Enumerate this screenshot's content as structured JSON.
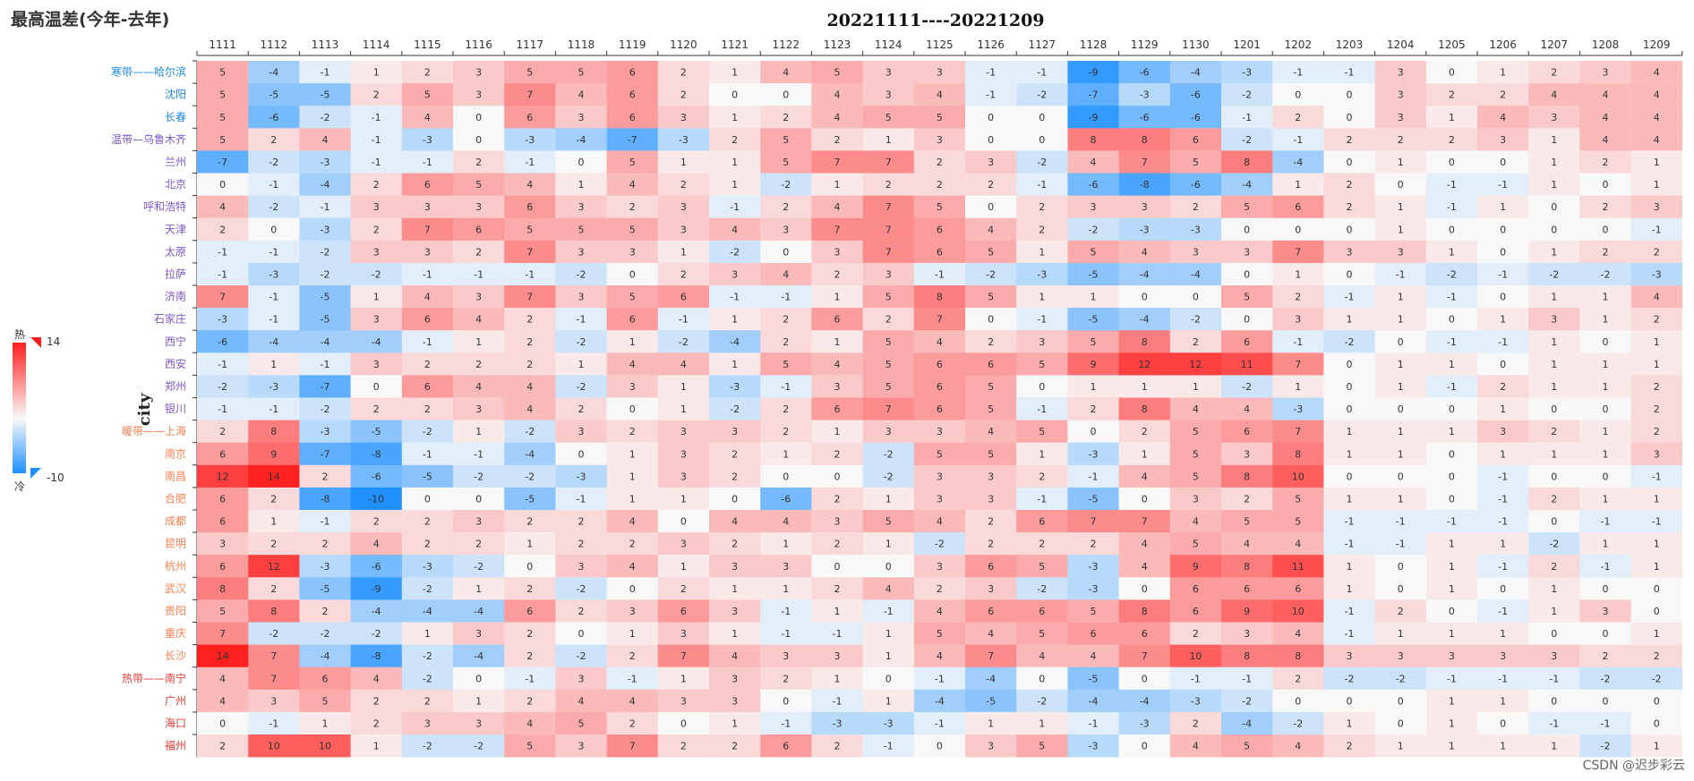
{
  "chart_data": {
    "type": "heatmap",
    "title": "最高温差(今年-去年)",
    "subtitle": "20221111----20221209",
    "ylabel": "city",
    "x": [
      "1111",
      "1112",
      "1113",
      "1114",
      "1115",
      "1116",
      "1117",
      "1118",
      "1119",
      "1120",
      "1121",
      "1122",
      "1123",
      "1124",
      "1125",
      "1126",
      "1127",
      "1128",
      "1129",
      "1130",
      "1201",
      "1202",
      "1203",
      "1204",
      "1205",
      "1206",
      "1207",
      "1208",
      "1209"
    ],
    "y": [
      "寒带——哈尔滨",
      "沈阳",
      "长春",
      "温带—乌鲁木齐",
      "兰州",
      "北京",
      "呼和浩特",
      "天津",
      "太原",
      "拉萨",
      "济南",
      "石家庄",
      "西宁",
      "西安",
      "郑州",
      "银川",
      "暖带——上海",
      "南京",
      "南昌",
      "合肥",
      "成都",
      "昆明",
      "杭州",
      "武汉",
      "贵阳",
      "重庆",
      "长沙",
      "热带——南宁",
      "广州",
      "海口",
      "福州"
    ],
    "y_zone": [
      "cold",
      "cold",
      "cold",
      "temperate",
      "temperate",
      "temperate",
      "temperate",
      "temperate",
      "temperate",
      "temperate",
      "temperate",
      "temperate",
      "temperate",
      "temperate",
      "temperate",
      "temperate",
      "warm",
      "warm",
      "warm",
      "warm",
      "warm",
      "warm",
      "warm",
      "warm",
      "warm",
      "warm",
      "warm",
      "hot",
      "hot",
      "hot",
      "hot"
    ],
    "zone_colors": {
      "cold": "#1e88e5",
      "temperate": "#7e57c2",
      "warm": "#ff7f50",
      "hot": "#e53935"
    },
    "values": [
      [
        5,
        -4,
        -1,
        1,
        2,
        3,
        5,
        5,
        6,
        2,
        1,
        4,
        5,
        3,
        3,
        -1,
        -1,
        -9,
        -6,
        -4,
        -3,
        -1,
        -1,
        3,
        0,
        1,
        2,
        3,
        4
      ],
      [
        5,
        -5,
        -5,
        2,
        5,
        3,
        7,
        4,
        6,
        2,
        0,
        0,
        4,
        3,
        4,
        -1,
        -2,
        -7,
        -3,
        -6,
        -2,
        0,
        0,
        3,
        2,
        2,
        4,
        4,
        4
      ],
      [
        5,
        -6,
        -2,
        -1,
        4,
        0,
        6,
        3,
        6,
        3,
        1,
        2,
        4,
        5,
        5,
        0,
        0,
        -9,
        -6,
        -6,
        -1,
        2,
        0,
        3,
        1,
        4,
        3,
        4,
        4
      ],
      [
        5,
        2,
        4,
        -1,
        -3,
        0,
        -3,
        -4,
        -7,
        -3,
        2,
        5,
        2,
        1,
        3,
        0,
        0,
        8,
        8,
        6,
        -2,
        -1,
        2,
        2,
        2,
        3,
        1,
        4,
        4
      ],
      [
        -7,
        -2,
        -3,
        -1,
        -1,
        2,
        -1,
        0,
        5,
        1,
        1,
        5,
        7,
        7,
        2,
        3,
        -2,
        4,
        7,
        5,
        8,
        -4,
        0,
        1,
        0,
        0,
        1,
        2,
        1
      ],
      [
        0,
        -1,
        -4,
        2,
        6,
        5,
        4,
        1,
        4,
        2,
        1,
        -2,
        1,
        2,
        2,
        2,
        -1,
        -6,
        -8,
        -6,
        -4,
        1,
        2,
        0,
        -1,
        -1,
        1,
        0,
        1
      ],
      [
        4,
        -2,
        -1,
        3,
        3,
        3,
        6,
        3,
        2,
        3,
        -1,
        2,
        4,
        7,
        5,
        0,
        2,
        3,
        3,
        2,
        5,
        6,
        2,
        1,
        -1,
        1,
        0,
        2,
        3
      ],
      [
        2,
        0,
        -3,
        2,
        7,
        6,
        5,
        5,
        5,
        3,
        4,
        3,
        7,
        7,
        6,
        4,
        2,
        -2,
        -3,
        -3,
        0,
        0,
        0,
        1,
        0,
        0,
        0,
        0,
        -1
      ],
      [
        -1,
        -1,
        -2,
        3,
        3,
        2,
        7,
        3,
        3,
        1,
        -2,
        0,
        3,
        7,
        6,
        5,
        1,
        5,
        4,
        3,
        3,
        7,
        3,
        3,
        1,
        0,
        1,
        2,
        2
      ],
      [
        -1,
        -3,
        -2,
        -2,
        -1,
        -1,
        -1,
        -2,
        0,
        2,
        3,
        4,
        2,
        3,
        -1,
        -2,
        -3,
        -5,
        -4,
        -4,
        0,
        1,
        0,
        -1,
        -2,
        -1,
        -2,
        -2,
        -3
      ],
      [
        7,
        -1,
        -5,
        1,
        4,
        3,
        7,
        3,
        5,
        6,
        -1,
        -1,
        1,
        5,
        8,
        5,
        1,
        1,
        0,
        0,
        5,
        2,
        -1,
        1,
        -1,
        0,
        1,
        1,
        4
      ],
      [
        -3,
        -1,
        -5,
        3,
        6,
        4,
        2,
        -1,
        6,
        -1,
        1,
        2,
        6,
        2,
        7,
        0,
        -1,
        -5,
        -4,
        -2,
        0,
        3,
        1,
        1,
        0,
        1,
        3,
        1,
        2
      ],
      [
        -6,
        -4,
        -4,
        -4,
        -1,
        1,
        2,
        -2,
        1,
        -2,
        -4,
        2,
        1,
        5,
        4,
        2,
        3,
        5,
        8,
        2,
        6,
        -1,
        -2,
        0,
        -1,
        -1,
        1,
        0,
        1
      ],
      [
        -1,
        1,
        -1,
        3,
        2,
        2,
        2,
        1,
        4,
        4,
        1,
        5,
        4,
        5,
        6,
        6,
        5,
        9,
        12,
        12,
        11,
        7,
        0,
        1,
        1,
        0,
        1,
        1,
        1
      ],
      [
        -2,
        -3,
        -7,
        0,
        6,
        4,
        4,
        -2,
        3,
        1,
        -3,
        -1,
        3,
        5,
        6,
        5,
        0,
        1,
        1,
        1,
        -2,
        1,
        0,
        1,
        -1,
        2,
        1,
        1,
        2
      ],
      [
        -1,
        -1,
        -2,
        2,
        2,
        3,
        4,
        2,
        0,
        1,
        -2,
        2,
        6,
        7,
        6,
        5,
        -1,
        2,
        8,
        4,
        4,
        -3,
        0,
        0,
        0,
        1,
        0,
        0,
        2
      ],
      [
        2,
        8,
        -3,
        -5,
        -2,
        1,
        -2,
        3,
        2,
        3,
        3,
        2,
        1,
        3,
        3,
        4,
        5,
        0,
        2,
        5,
        6,
        7,
        1,
        1,
        1,
        3,
        2,
        1,
        2
      ],
      [
        6,
        9,
        -7,
        -8,
        -1,
        -1,
        -4,
        0,
        1,
        3,
        2,
        1,
        2,
        -2,
        5,
        5,
        1,
        -3,
        1,
        5,
        3,
        8,
        1,
        1,
        0,
        1,
        1,
        1,
        3
      ],
      [
        12,
        14,
        2,
        -6,
        -5,
        -2,
        -2,
        -3,
        1,
        3,
        2,
        0,
        0,
        -2,
        3,
        3,
        2,
        -1,
        4,
        5,
        8,
        10,
        0,
        0,
        0,
        -1,
        0,
        0,
        -1
      ],
      [
        6,
        2,
        -8,
        -10,
        0,
        0,
        -5,
        -1,
        1,
        1,
        0,
        -6,
        2,
        1,
        3,
        3,
        -1,
        -5,
        0,
        3,
        2,
        5,
        1,
        1,
        0,
        -1,
        2,
        1,
        1
      ],
      [
        6,
        1,
        -1,
        2,
        2,
        3,
        2,
        2,
        4,
        0,
        4,
        4,
        3,
        5,
        4,
        2,
        6,
        7,
        7,
        4,
        5,
        5,
        -1,
        -1,
        -1,
        -1,
        0,
        -1,
        -1
      ],
      [
        3,
        2,
        2,
        4,
        2,
        2,
        1,
        2,
        2,
        3,
        2,
        1,
        2,
        1,
        -2,
        2,
        2,
        2,
        4,
        5,
        4,
        4,
        -1,
        -1,
        1,
        1,
        -2,
        1,
        1
      ],
      [
        6,
        12,
        -3,
        -6,
        -3,
        -2,
        0,
        3,
        4,
        1,
        3,
        3,
        0,
        0,
        3,
        6,
        5,
        -3,
        4,
        9,
        8,
        11,
        1,
        0,
        1,
        -1,
        2,
        -1,
        1
      ],
      [
        8,
        2,
        -5,
        -9,
        -2,
        1,
        2,
        -2,
        0,
        2,
        1,
        1,
        2,
        4,
        2,
        3,
        -2,
        -3,
        0,
        6,
        6,
        6,
        1,
        0,
        1,
        0,
        1,
        0,
        0
      ],
      [
        5,
        8,
        2,
        -4,
        -4,
        -4,
        6,
        2,
        3,
        6,
        3,
        -1,
        1,
        -1,
        4,
        6,
        6,
        5,
        8,
        6,
        9,
        10,
        -1,
        2,
        0,
        -1,
        1,
        3,
        0
      ],
      [
        7,
        -2,
        -2,
        -2,
        1,
        3,
        2,
        0,
        1,
        3,
        1,
        -1,
        -1,
        1,
        5,
        4,
        5,
        6,
        6,
        2,
        3,
        4,
        -1,
        1,
        1,
        1,
        0,
        0,
        1
      ],
      [
        14,
        7,
        -4,
        -8,
        -2,
        -4,
        2,
        -2,
        2,
        7,
        4,
        3,
        3,
        1,
        4,
        7,
        4,
        4,
        7,
        10,
        8,
        8,
        3,
        3,
        3,
        3,
        3,
        2,
        2
      ],
      [
        4,
        7,
        6,
        4,
        -2,
        0,
        -1,
        3,
        -1,
        1,
        3,
        2,
        1,
        0,
        -1,
        -4,
        0,
        -5,
        0,
        -1,
        -1,
        2,
        -2,
        -2,
        -1,
        -1,
        -1,
        -2,
        -2
      ],
      [
        4,
        3,
        5,
        2,
        2,
        1,
        2,
        4,
        4,
        3,
        3,
        0,
        -1,
        1,
        -4,
        -5,
        -2,
        -4,
        -4,
        -3,
        -2,
        0,
        0,
        0,
        1,
        1,
        0,
        0,
        0
      ],
      [
        0,
        -1,
        1,
        2,
        3,
        3,
        4,
        5,
        2,
        0,
        1,
        -1,
        -3,
        -3,
        -1,
        1,
        1,
        -1,
        -3,
        2,
        -4,
        -2,
        1,
        0,
        1,
        0,
        -1,
        -1,
        0
      ],
      [
        2,
        10,
        10,
        1,
        -2,
        -2,
        5,
        3,
        7,
        2,
        2,
        6,
        2,
        -1,
        0,
        3,
        5,
        -3,
        0,
        4,
        5,
        4,
        2,
        1,
        1,
        1,
        1,
        -2,
        1
      ]
    ],
    "visual_map": {
      "min": -10,
      "max": 14,
      "max_label": "14",
      "min_label": "-10",
      "hot_label": "热",
      "cold_label": "冷"
    },
    "colors": {
      "cold_end": "#1e90ff",
      "mid": "#f8f8f8",
      "hot_end": "#ff2020"
    }
  },
  "watermark": "CSDN @迟步彩云"
}
